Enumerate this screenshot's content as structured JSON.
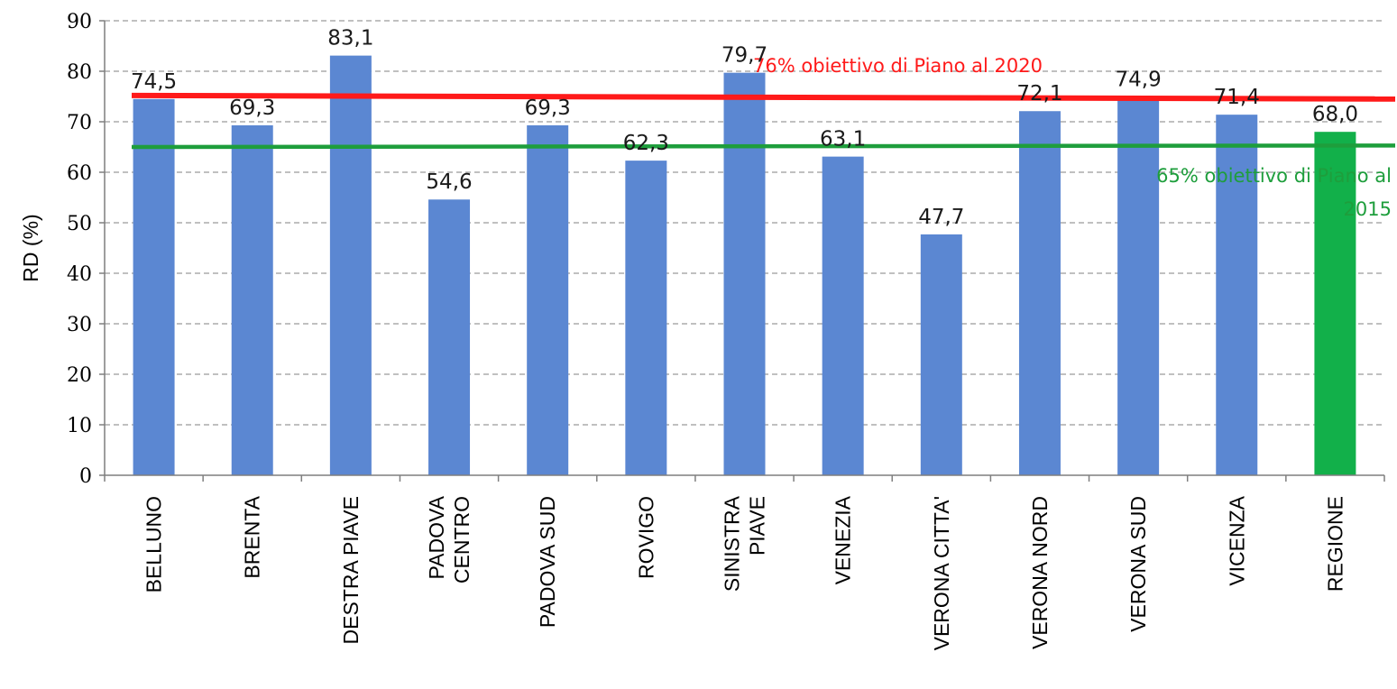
{
  "chart_data": {
    "type": "bar",
    "ylabel": "RD (%)",
    "ylim": [
      0,
      90
    ],
    "yticks": [
      0,
      10,
      20,
      30,
      40,
      50,
      60,
      70,
      80,
      90
    ],
    "grid": "horizontal dashed",
    "categories": [
      [
        "BELLUNO"
      ],
      [
        "BRENTA"
      ],
      [
        "DESTRA PIAVE"
      ],
      [
        "PADOVA",
        "CENTRO"
      ],
      [
        "PADOVA SUD"
      ],
      [
        "ROVIGO"
      ],
      [
        "SINISTRA",
        "PIAVE"
      ],
      [
        "VENEZIA"
      ],
      [
        "VERONA CITTA'"
      ],
      [
        "VERONA NORD"
      ],
      [
        "VERONA SUD"
      ],
      [
        "VICENZA"
      ],
      [
        "REGIONE"
      ]
    ],
    "values": [
      74.5,
      69.3,
      83.1,
      54.6,
      69.3,
      62.3,
      79.7,
      63.1,
      47.7,
      72.1,
      74.9,
      71.4,
      68.0
    ],
    "value_labels": [
      "74,5",
      "69,3",
      "83,1",
      "54,6",
      "69,3",
      "62,3",
      "79,7",
      "63,1",
      "47,7",
      "72,1",
      "74,9",
      "71,4",
      "68,0"
    ],
    "bar_colors": [
      "#5b87d2",
      "#5b87d2",
      "#5b87d2",
      "#5b87d2",
      "#5b87d2",
      "#5b87d2",
      "#5b87d2",
      "#5b87d2",
      "#5b87d2",
      "#5b87d2",
      "#5b87d2",
      "#5b87d2",
      "#12b04a"
    ],
    "reference_lines": [
      {
        "label": "76% obiettivo  di Piano al 2020",
        "from_value": 75.2,
        "to_value": 74.5,
        "color": "#ff1a1a"
      },
      {
        "label_lines": [
          "65% obiettivo  di Piano al",
          "2015"
        ],
        "from_value": 65.0,
        "to_value": 65.3,
        "color": "#1e9e3c"
      }
    ]
  }
}
